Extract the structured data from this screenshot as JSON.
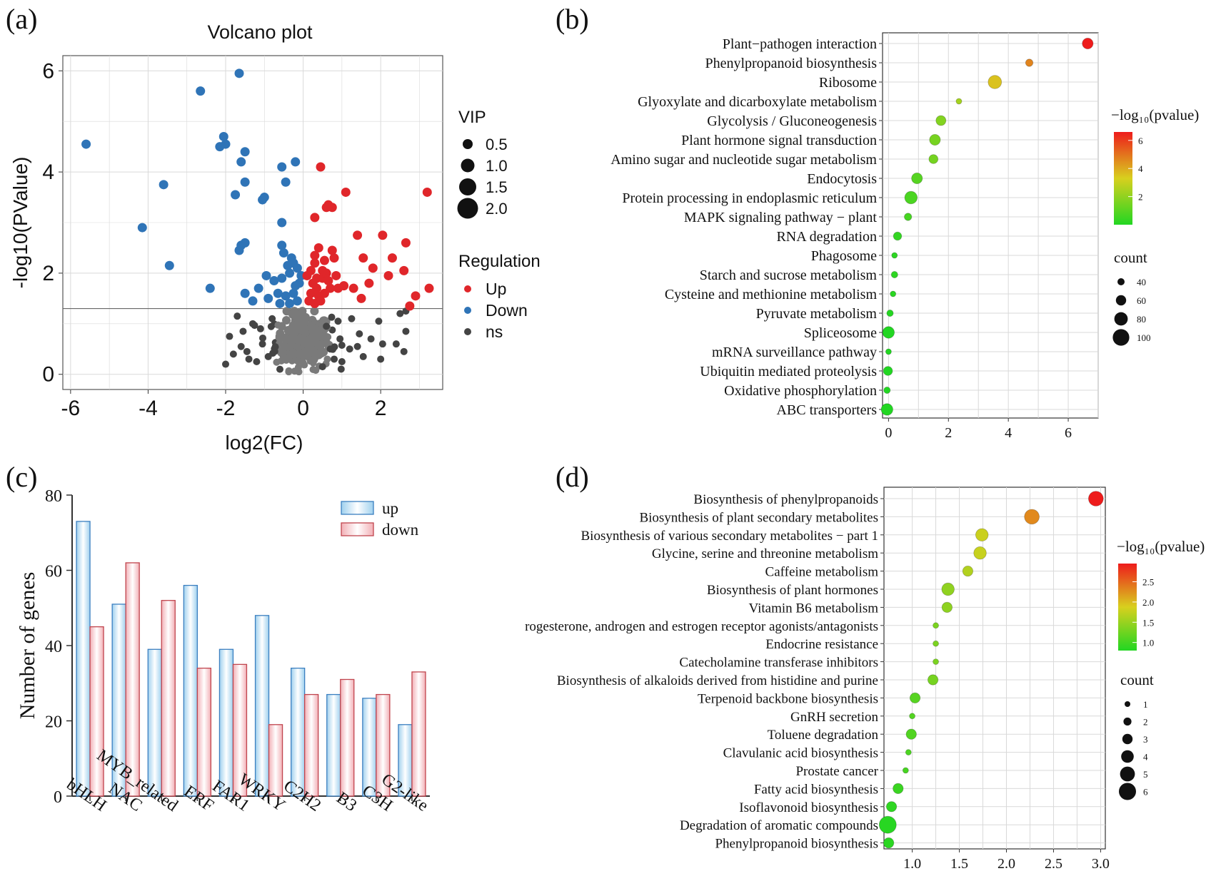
{
  "panel_labels": [
    "(a)",
    "(b)",
    "(c)",
    "(d)"
  ],
  "colors": {
    "up": "#e0262a",
    "down": "#2f74b7",
    "ns": "#444444",
    "ns_center": "#7a7a7a",
    "bar_up_fill": "#9fd0ee",
    "bar_up_edge": "#3b7fc0",
    "bar_down_fill": "#f2b0b6",
    "bar_down_edge": "#c0454e",
    "grad_low": "#22d622",
    "grad_mid": "#d8d01e",
    "grad_high": "#ee1c1c",
    "grid": "#d9d9d9"
  },
  "chart_data": [
    {
      "id": "a",
      "type": "scatter",
      "title": "Volcano plot",
      "xlabel": "log2(FC)",
      "ylabel": "-log10(PValue)",
      "xlim": [
        -6.2,
        3.6
      ],
      "ylim": [
        -0.3,
        6.3
      ],
      "xticks": [
        -6,
        -4,
        -2,
        0,
        2
      ],
      "yticks": [
        0,
        2,
        4,
        6
      ],
      "threshold_y": 1.3,
      "legend_vip": {
        "title": "VIP",
        "labels": [
          "0.5",
          "1.0",
          "1.5",
          "2.0"
        ]
      },
      "legend_regulation": {
        "title": "Regulation",
        "labels": [
          "Up",
          "Down",
          "ns"
        ]
      },
      "series": [
        {
          "name": "Up",
          "points": [
            [
              3.2,
              3.6
            ],
            [
              0.45,
              4.1
            ],
            [
              1.1,
              3.6
            ],
            [
              0.6,
              3.3
            ],
            [
              0.75,
              3.3
            ],
            [
              0.65,
              3.35
            ],
            [
              0.3,
              3.1
            ],
            [
              1.4,
              2.75
            ],
            [
              2.05,
              2.75
            ],
            [
              2.65,
              2.6
            ],
            [
              0.3,
              2.2
            ],
            [
              0.55,
              2.25
            ],
            [
              0.8,
              2.3
            ],
            [
              1.55,
              2.3
            ],
            [
              2.3,
              2.3
            ],
            [
              0.4,
              2.5
            ],
            [
              0.75,
              2.45
            ],
            [
              1.8,
              2.1
            ],
            [
              2.2,
              1.95
            ],
            [
              2.6,
              2.05
            ],
            [
              1.3,
              1.7
            ],
            [
              1.7,
              1.8
            ],
            [
              2.9,
              1.55
            ],
            [
              3.25,
              1.7
            ],
            [
              1.5,
              1.5
            ],
            [
              2.75,
              1.35
            ],
            [
              0.25,
              1.8
            ],
            [
              0.35,
              1.9
            ],
            [
              0.5,
              1.9
            ],
            [
              0.6,
              2.0
            ],
            [
              0.2,
              1.6
            ],
            [
              0.4,
              1.55
            ],
            [
              0.55,
              1.6
            ],
            [
              0.7,
              1.7
            ],
            [
              0.15,
              1.45
            ],
            [
              0.3,
              1.4
            ],
            [
              0.45,
              1.45
            ],
            [
              0.1,
              1.95
            ],
            [
              0.2,
              2.05
            ],
            [
              0.5,
              2.05
            ],
            [
              0.65,
              1.85
            ],
            [
              0.85,
              1.95
            ],
            [
              0.9,
              1.7
            ],
            [
              0.35,
              1.7
            ],
            [
              1.05,
              1.75
            ],
            [
              0.3,
              2.35
            ]
          ]
        },
        {
          "name": "Down",
          "points": [
            [
              -5.6,
              4.55
            ],
            [
              -4.15,
              2.9
            ],
            [
              -3.6,
              3.75
            ],
            [
              -3.45,
              2.15
            ],
            [
              -2.65,
              5.6
            ],
            [
              -2.4,
              1.7
            ],
            [
              -2.15,
              4.5
            ],
            [
              -2.05,
              4.7
            ],
            [
              -2.0,
              4.55
            ],
            [
              -1.65,
              5.95
            ],
            [
              -1.6,
              4.2
            ],
            [
              -1.5,
              4.4
            ],
            [
              -1.5,
              3.8
            ],
            [
              -1.75,
              3.55
            ],
            [
              -1.6,
              2.55
            ],
            [
              -1.5,
              2.6
            ],
            [
              -1.65,
              2.45
            ],
            [
              -1.05,
              3.45
            ],
            [
              -1.0,
              3.5
            ],
            [
              -0.55,
              4.1
            ],
            [
              -0.45,
              3.8
            ],
            [
              -0.2,
              4.2
            ],
            [
              -0.55,
              3.0
            ],
            [
              -0.55,
              2.55
            ],
            [
              -0.5,
              2.4
            ],
            [
              -0.3,
              2.3
            ],
            [
              -0.25,
              2.2
            ],
            [
              -0.15,
              2.1
            ],
            [
              -0.35,
              2.0
            ],
            [
              -0.55,
              1.9
            ],
            [
              -0.75,
              1.85
            ],
            [
              -0.95,
              1.95
            ],
            [
              -1.15,
              1.7
            ],
            [
              -1.5,
              1.6
            ],
            [
              -1.3,
              1.45
            ],
            [
              -0.9,
              1.5
            ],
            [
              -0.65,
              1.6
            ],
            [
              -0.45,
              1.55
            ],
            [
              -0.25,
              1.6
            ],
            [
              -0.1,
              1.8
            ],
            [
              -0.15,
              1.45
            ],
            [
              -0.35,
              1.4
            ],
            [
              -0.6,
              1.4
            ],
            [
              -0.05,
              1.95
            ],
            [
              -0.4,
              2.15
            ],
            [
              -0.2,
              1.75
            ]
          ]
        },
        {
          "name": "ns",
          "points": [
            [
              2.65,
              1.25
            ],
            [
              2.5,
              1.2
            ],
            [
              1.95,
              1.05
            ],
            [
              2.65,
              0.85
            ],
            [
              2.4,
              0.6
            ],
            [
              2.6,
              0.45
            ],
            [
              2.05,
              0.6
            ],
            [
              1.45,
              0.8
            ],
            [
              1.2,
              0.5
            ],
            [
              0.95,
              0.7
            ],
            [
              1.55,
              0.35
            ],
            [
              0.8,
              0.3
            ],
            [
              1.0,
              0.25
            ],
            [
              -1.9,
              0.75
            ],
            [
              -1.6,
              0.55
            ],
            [
              -1.8,
              0.4
            ],
            [
              -1.4,
              0.3
            ],
            [
              -1.2,
              0.25
            ],
            [
              -1.55,
              0.85
            ],
            [
              -1.1,
              0.9
            ],
            [
              -1.7,
              1.15
            ],
            [
              -1.3,
              1.0
            ],
            [
              -0.9,
              0.35
            ],
            [
              0.6,
              0.95
            ],
            [
              0.9,
              1.05
            ],
            [
              1.25,
              1.1
            ],
            [
              0.7,
              0.5
            ],
            [
              -0.8,
              1.1
            ],
            [
              -1.05,
              0.6
            ],
            [
              -1.45,
              0.45
            ],
            [
              1.4,
              0.55
            ],
            [
              0.5,
              0.15
            ],
            [
              -0.6,
              0.1
            ],
            [
              2.0,
              0.3
            ],
            [
              -2.0,
              0.2
            ],
            [
              1.75,
              0.7
            ]
          ]
        },
        {
          "name": "ns_cluster",
          "center": [
            0,
            0.65
          ],
          "spread": [
            0.45,
            0.5
          ],
          "count": 260
        }
      ]
    },
    {
      "id": "b",
      "type": "scatter",
      "subtype": "bubble",
      "xlim": [
        -0.2,
        7.0
      ],
      "xticks": [
        0,
        2,
        4,
        6
      ],
      "colorbar": {
        "title": "−log₁₀(pvalue)",
        "range": [
          0,
          6.6
        ],
        "ticks": [
          2,
          4,
          6
        ]
      },
      "size_legend": {
        "title": "count",
        "labels": [
          "40",
          "60",
          "80",
          "100"
        ]
      },
      "categories": [
        "Plant−pathogen interaction",
        "Phenylpropanoid biosynthesis",
        "Ribosome",
        "Glyoxylate and dicarboxylate metabolism",
        "Glycolysis / Gluconeogenesis",
        "Plant hormone signal transduction",
        "Amino sugar and nucleotide sugar metabolism",
        "Endocytosis",
        "Protein processing in endoplasmic reticulum",
        "MAPK signaling pathway − plant",
        "RNA degradation",
        "Phagosome",
        "Starch and sucrose metabolism",
        "Cysteine and methionine metabolism",
        "Pyruvate metabolism",
        "Spliceosome",
        "mRNA surveillance pathway",
        "Ubiquitin mediated proteolysis",
        "Oxidative phosphorylation",
        "ABC transporters"
      ],
      "x": [
        6.65,
        4.7,
        3.55,
        2.35,
        1.75,
        1.55,
        1.5,
        0.95,
        0.75,
        0.65,
        0.3,
        0.2,
        0.2,
        0.15,
        0.05,
        0.0,
        0.0,
        -0.02,
        -0.05,
        -0.05
      ],
      "count": [
        60,
        40,
        75,
        30,
        55,
        60,
        50,
        60,
        70,
        40,
        45,
        30,
        35,
        30,
        35,
        65,
        30,
        50,
        35,
        65
      ]
    },
    {
      "id": "c",
      "type": "bar",
      "ylabel": "Number of genes",
      "ylim": [
        0,
        80
      ],
      "yticks": [
        0,
        20,
        40,
        60,
        80
      ],
      "categories": [
        "bHLH",
        "NAC",
        "MYB_related",
        "ERF",
        "FAR1",
        "WRKY",
        "C2H2",
        "B3",
        "C3H",
        "G2-like"
      ],
      "series": [
        {
          "name": "up",
          "values": [
            73,
            51,
            39,
            56,
            39,
            48,
            34,
            27,
            26,
            19
          ]
        },
        {
          "name": "down",
          "values": [
            45,
            62,
            52,
            34,
            35,
            19,
            27,
            31,
            27,
            33
          ]
        }
      ]
    },
    {
      "id": "d",
      "type": "scatter",
      "subtype": "bubble",
      "xlim": [
        0.7,
        3.05
      ],
      "xticks": [
        "1.0",
        "1.5",
        "2.0",
        "2.5",
        "3.0"
      ],
      "colorbar": {
        "title": "−log₁₀(pvalue)",
        "range": [
          0.7,
          2.95
        ],
        "ticks": [
          "1.0",
          "1.5",
          "2.0",
          "2.5"
        ]
      },
      "size_legend": {
        "title": "count",
        "labels": [
          "1",
          "2",
          "3",
          "4",
          "5",
          "6"
        ]
      },
      "categories": [
        "Biosynthesis of phenylpropanoids",
        "Biosynthesis of plant secondary metabolites",
        "Biosynthesis of various secondary metabolites − part 1",
        "Glycine, serine and threonine metabolism",
        "Caffeine metabolism",
        "Biosynthesis of plant hormones",
        "Vitamin B6 metabolism",
        "rogesterone, androgen and estrogen receptor agonists/antagonists",
        "Endocrine resistance",
        "Catecholamine transferase inhibitors",
        "Biosynthesis of alkaloids derived from histidine and purine",
        "Terpenoid backbone biosynthesis",
        "GnRH secretion",
        "Toluene degradation",
        "Clavulanic acid biosynthesis",
        "Prostate cancer",
        "Fatty acid biosynthesis",
        "Isoflavonoid biosynthesis",
        "Degradation of aromatic compounds",
        "Phenylpropanoid biosynthesis"
      ],
      "x": [
        2.95,
        2.27,
        1.74,
        1.72,
        1.59,
        1.38,
        1.37,
        1.25,
        1.25,
        1.25,
        1.22,
        1.03,
        1.0,
        0.99,
        0.96,
        0.93,
        0.85,
        0.78,
        0.74,
        0.75
      ],
      "count": [
        5,
        5,
        4,
        4,
        3,
        4,
        3,
        1,
        1,
        1,
        3,
        3,
        1,
        3,
        1,
        1,
        3,
        3,
        6,
        3
      ]
    }
  ]
}
